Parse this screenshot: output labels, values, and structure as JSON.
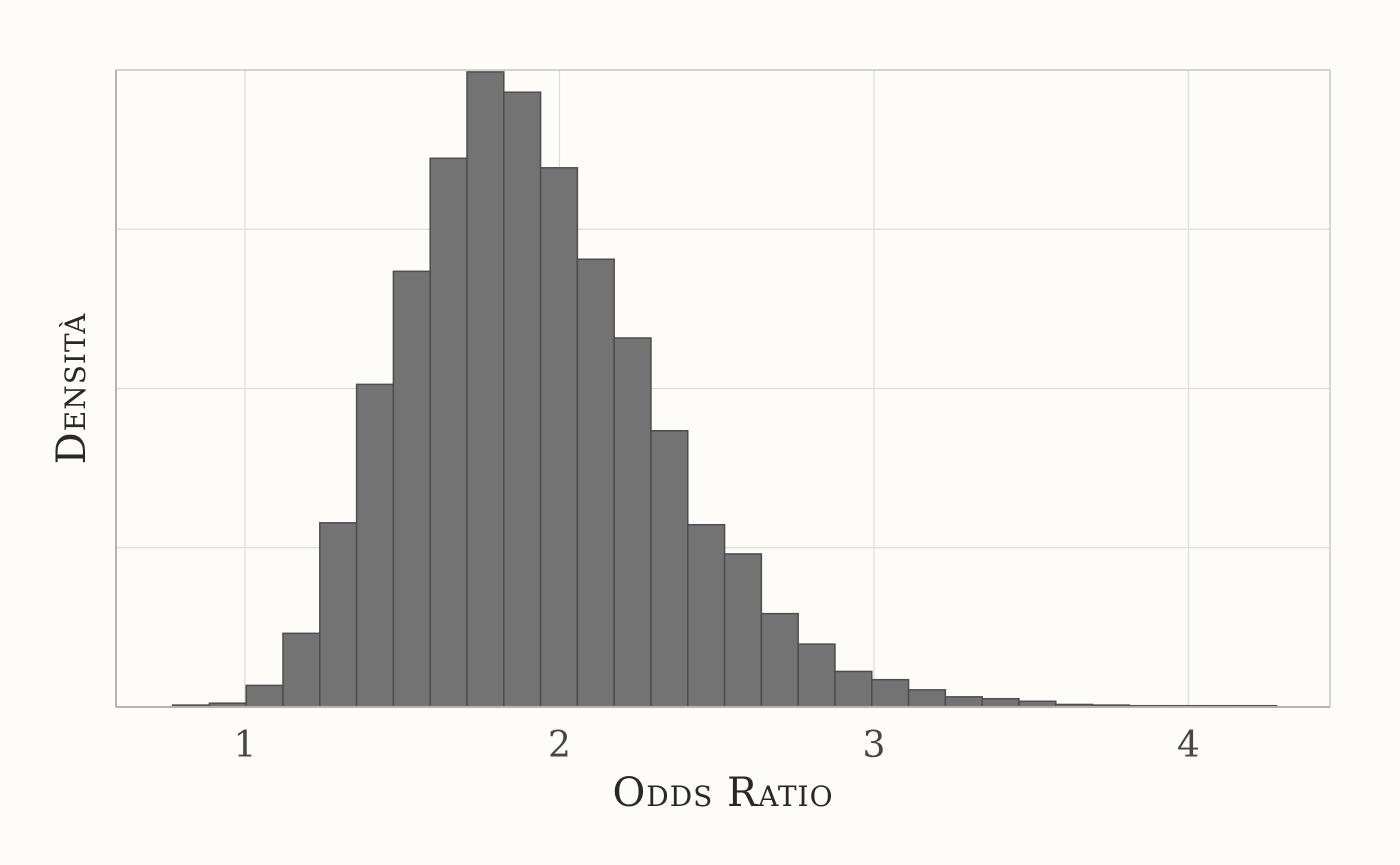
{
  "chart_data": {
    "type": "bar",
    "subtype": "histogram",
    "xlabel": "Odds Ratio",
    "ylabel": "Densità",
    "xlim": [
      0.59,
      4.45
    ],
    "x_ticks": [
      1,
      2,
      3,
      4
    ],
    "y_gridlines": 4,
    "y_tick_labels_shown": false,
    "grid": true,
    "bin_width": 0.117,
    "bins": [
      {
        "start": 0.77,
        "end": 0.887,
        "count": 0.3
      },
      {
        "start": 0.887,
        "end": 1.004,
        "count": 0.6
      },
      {
        "start": 1.004,
        "end": 1.121,
        "count": 3.4
      },
      {
        "start": 1.121,
        "end": 1.238,
        "count": 11.6
      },
      {
        "start": 1.238,
        "end": 1.355,
        "count": 29.0
      },
      {
        "start": 1.355,
        "end": 1.472,
        "count": 50.8
      },
      {
        "start": 1.472,
        "end": 1.589,
        "count": 68.6
      },
      {
        "start": 1.589,
        "end": 1.706,
        "count": 86.4
      },
      {
        "start": 1.706,
        "end": 1.823,
        "count": 100.0
      },
      {
        "start": 1.823,
        "end": 1.94,
        "count": 96.8
      },
      {
        "start": 1.94,
        "end": 2.057,
        "count": 84.9
      },
      {
        "start": 2.057,
        "end": 2.174,
        "count": 70.5
      },
      {
        "start": 2.174,
        "end": 2.291,
        "count": 58.1
      },
      {
        "start": 2.291,
        "end": 2.408,
        "count": 43.5
      },
      {
        "start": 2.408,
        "end": 2.525,
        "count": 28.7
      },
      {
        "start": 2.525,
        "end": 2.642,
        "count": 24.1
      },
      {
        "start": 2.642,
        "end": 2.759,
        "count": 14.7
      },
      {
        "start": 2.759,
        "end": 2.876,
        "count": 9.9
      },
      {
        "start": 2.876,
        "end": 2.993,
        "count": 5.6
      },
      {
        "start": 2.993,
        "end": 3.11,
        "count": 4.3
      },
      {
        "start": 3.11,
        "end": 3.227,
        "count": 2.7
      },
      {
        "start": 3.227,
        "end": 3.344,
        "count": 1.6
      },
      {
        "start": 3.344,
        "end": 3.461,
        "count": 1.3
      },
      {
        "start": 3.461,
        "end": 3.578,
        "count": 0.9
      },
      {
        "start": 3.578,
        "end": 3.695,
        "count": 0.4
      },
      {
        "start": 3.695,
        "end": 3.812,
        "count": 0.3
      },
      {
        "start": 3.812,
        "end": 3.929,
        "count": 0.2
      },
      {
        "start": 3.929,
        "end": 4.046,
        "count": 0.2
      },
      {
        "start": 4.046,
        "end": 4.163,
        "count": 0.2
      },
      {
        "start": 4.163,
        "end": 4.28,
        "count": 0.2
      }
    ],
    "colors": {
      "bar_fill": "#737373",
      "bar_stroke": "#4d4d4d",
      "grid": "#dcdcd8",
      "panel_border": "#c8c8c4",
      "background": "#fdfcf9"
    }
  }
}
